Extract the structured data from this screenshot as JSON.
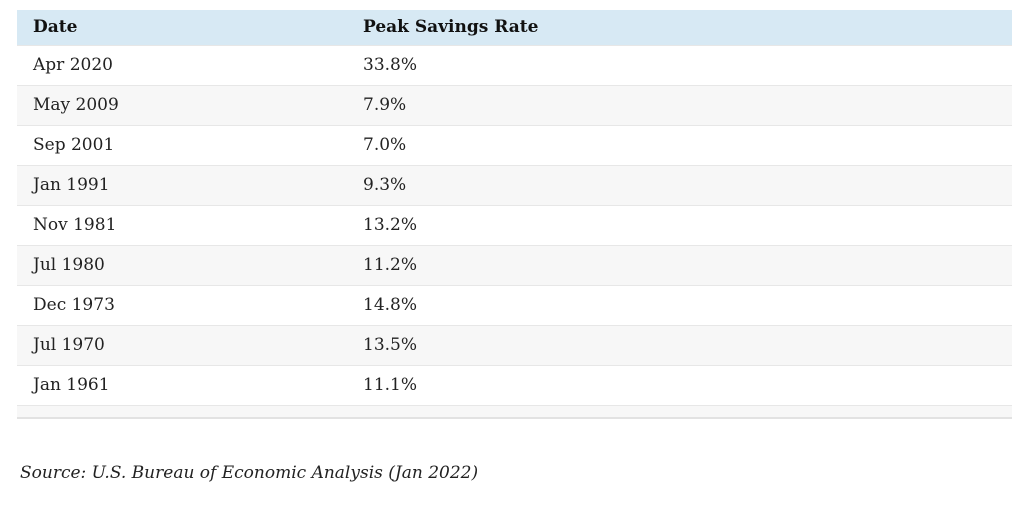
{
  "table": {
    "columns": [
      "Date",
      "Peak Savings Rate"
    ],
    "rows": [
      {
        "date": "Apr 2020",
        "rate": "33.8%"
      },
      {
        "date": "May 2009",
        "rate": "7.9%"
      },
      {
        "date": "Sep 2001",
        "rate": "7.0%"
      },
      {
        "date": "Jan 1991",
        "rate": "9.3%"
      },
      {
        "date": "Nov 1981",
        "rate": "13.2%"
      },
      {
        "date": "Jul 1980",
        "rate": "11.2%"
      },
      {
        "date": "Dec 1973",
        "rate": "14.8%"
      },
      {
        "date": "Jul 1970",
        "rate": "13.5%"
      },
      {
        "date": "Jan 1961",
        "rate": "11.1%"
      }
    ],
    "colors": {
      "header_bg": "#d7e9f4",
      "stripe_bg": "#f7f7f7",
      "border_color": "#e7e7e7",
      "text_color": "#222222"
    }
  },
  "source_note": "Source: U.S. Bureau of Economic Analysis (Jan 2022)",
  "chart_data": {
    "type": "table",
    "title": "",
    "columns": [
      "Date",
      "Peak Savings Rate"
    ],
    "categories": [
      "Apr 2020",
      "May 2009",
      "Sep 2001",
      "Jan 1991",
      "Nov 1981",
      "Jul 1980",
      "Dec 1973",
      "Jul 1970",
      "Jan 1961"
    ],
    "values": [
      33.8,
      7.9,
      7.0,
      9.3,
      13.2,
      11.2,
      14.8,
      13.5,
      11.1
    ],
    "value_unit": "%",
    "source": "Source: U.S. Bureau of Economic Analysis (Jan 2022)",
    "layout": {
      "header_background": "#d7e9f4",
      "zebra_striping": true,
      "grid": "horizontal-row-borders"
    }
  }
}
